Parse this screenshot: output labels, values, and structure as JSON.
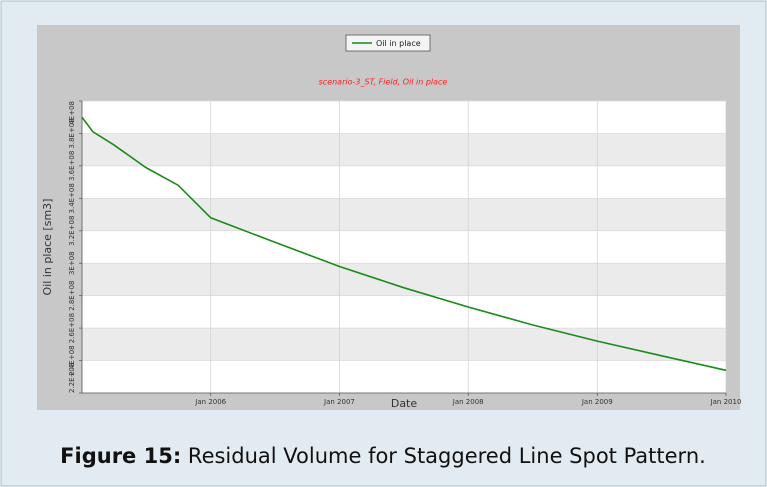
{
  "chart_data": {
    "type": "line",
    "legend": "Oil in place",
    "subtitle": "scenario-3_ST, Field, Oil in place",
    "y_label": "Oil in place [sm3]",
    "x_label": "Date",
    "x": [
      "2005-01",
      "2005-02",
      "2005-04",
      "2005-07",
      "2005-10",
      "2006-01",
      "2006-07",
      "2007-01",
      "2007-07",
      "2008-01",
      "2008-07",
      "2009-01",
      "2009-07",
      "2010-01"
    ],
    "series": [
      {
        "name": "Oil in place",
        "color": "#1a8a1a",
        "values": [
          390000000,
          381000000,
          373000000,
          359000000,
          348000000,
          328000000,
          313000000,
          298000000,
          285000000,
          273000000,
          262000000,
          252000000,
          243000000,
          234000000
        ]
      }
    ],
    "xlim": [
      "2005-01",
      "2010-01"
    ],
    "xticks": [
      {
        "value": "2006-01",
        "label": "Jan 2006"
      },
      {
        "value": "2007-01",
        "label": "Jan 2007"
      },
      {
        "value": "2008-01",
        "label": "Jan 2008"
      },
      {
        "value": "2009-01",
        "label": "Jan 2009"
      },
      {
        "value": "2010-01",
        "label": "Jan 2010"
      }
    ],
    "ylim": [
      220000000,
      400000000
    ],
    "yticks": [
      {
        "value": 220000000,
        "label": "2.2E+08"
      },
      {
        "value": 240000000,
        "label": "2.4E+08"
      },
      {
        "value": 260000000,
        "label": "2.6E+08"
      },
      {
        "value": 280000000,
        "label": "2.8E+08"
      },
      {
        "value": 300000000,
        "label": "3E+08"
      },
      {
        "value": 320000000,
        "label": "3.2E+08"
      },
      {
        "value": 340000000,
        "label": "3.4E+08"
      },
      {
        "value": 360000000,
        "label": "3.6E+08"
      },
      {
        "value": 380000000,
        "label": "3.8E+08"
      },
      {
        "value": 400000000,
        "label": "4E+08"
      }
    ],
    "grid": true
  },
  "caption": {
    "label": "Figure 15:",
    "text": "Residual Volume for Staggered Line Spot Pattern."
  }
}
